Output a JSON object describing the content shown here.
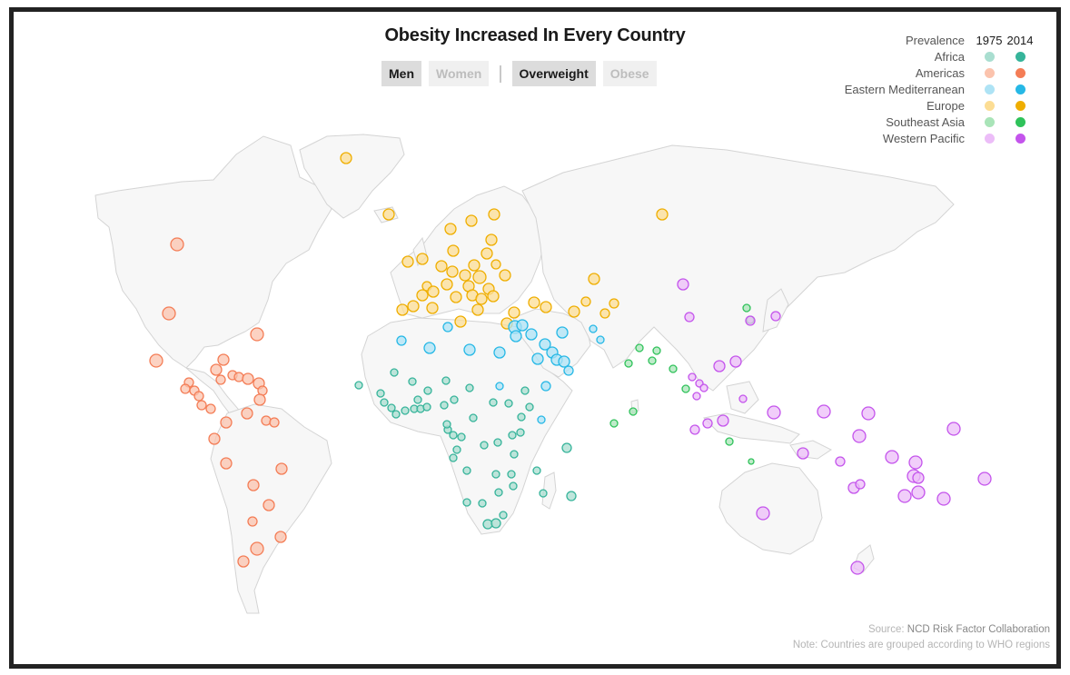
{
  "title": "Obesity Increased In Every Country",
  "toggles": {
    "sex": [
      {
        "label": "Men",
        "active": true
      },
      {
        "label": "Women",
        "active": false
      }
    ],
    "separator": "|",
    "measure": [
      {
        "label": "Overweight",
        "active": true
      },
      {
        "label": "Obese",
        "active": false
      }
    ]
  },
  "legend": {
    "header": "Prevalence",
    "year_1975": "1975",
    "year_2014": "2014",
    "regions": [
      {
        "name": "Africa",
        "color_1975": "#a9ded0",
        "color_2014": "#36b49a"
      },
      {
        "name": "Americas",
        "color_1975": "#fbc3ad",
        "color_2014": "#f47d56"
      },
      {
        "name": "Eastern Mediterranean",
        "color_1975": "#aee3f5",
        "color_2014": "#26b8e6"
      },
      {
        "name": "Europe",
        "color_1975": "#fcdd94",
        "color_2014": "#efae00"
      },
      {
        "name": "Southeast Asia",
        "color_1975": "#a9e4b8",
        "color_2014": "#2fc25a"
      },
      {
        "name": "Western Pacific",
        "color_1975": "#ecbdf8",
        "color_2014": "#c454ec"
      }
    ]
  },
  "source_prefix": "Source: ",
  "source_name": "NCD Risk Factor Collaboration",
  "note": "Note: Countries are grouped according to WHO regions"
}
